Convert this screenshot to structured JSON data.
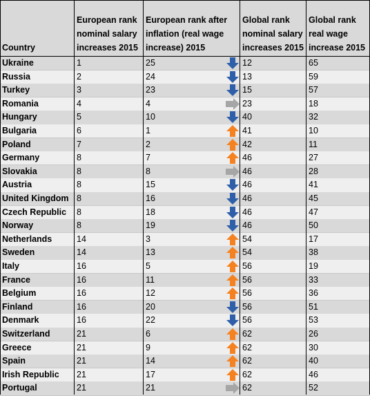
{
  "headers": [
    "Country",
    "European rank nominal salary increases 2015",
    "European rank after inflation (real wage increase) 2015",
    "Global rank nominal salary increases 2015",
    "Global rank real wage increase 2015"
  ],
  "rows": [
    {
      "country": "Ukraine",
      "eu_nominal": "1",
      "eu_real": "25",
      "trend": "down",
      "global_nominal": "12",
      "global_real": "65"
    },
    {
      "country": "Russia",
      "eu_nominal": "2",
      "eu_real": "24",
      "trend": "down",
      "global_nominal": "13",
      "global_real": "59"
    },
    {
      "country": "Turkey",
      "eu_nominal": "3",
      "eu_real": "23",
      "trend": "down",
      "global_nominal": "15",
      "global_real": "57"
    },
    {
      "country": "Romania",
      "eu_nominal": "4",
      "eu_real": "4",
      "trend": "same",
      "global_nominal": "23",
      "global_real": "18"
    },
    {
      "country": "Hungary",
      "eu_nominal": "5",
      "eu_real": "10",
      "trend": "down",
      "global_nominal": "40",
      "global_real": "32"
    },
    {
      "country": "Bulgaria",
      "eu_nominal": "6",
      "eu_real": "1",
      "trend": "up",
      "global_nominal": "41",
      "global_real": "10"
    },
    {
      "country": "Poland",
      "eu_nominal": "7",
      "eu_real": "2",
      "trend": "up",
      "global_nominal": "42",
      "global_real": "11"
    },
    {
      "country": "Germany",
      "eu_nominal": "8",
      "eu_real": "7",
      "trend": "up",
      "global_nominal": "46",
      "global_real": "27"
    },
    {
      "country": "Slovakia",
      "eu_nominal": "8",
      "eu_real": "8",
      "trend": "same",
      "global_nominal": "46",
      "global_real": "28"
    },
    {
      "country": "Austria",
      "eu_nominal": "8",
      "eu_real": "15",
      "trend": "down",
      "global_nominal": "46",
      "global_real": "41"
    },
    {
      "country": "United Kingdom",
      "eu_nominal": "8",
      "eu_real": "16",
      "trend": "down",
      "global_nominal": "46",
      "global_real": "45"
    },
    {
      "country": "Czech Republic",
      "eu_nominal": "8",
      "eu_real": "18",
      "trend": "down",
      "global_nominal": "46",
      "global_real": "47"
    },
    {
      "country": "Norway",
      "eu_nominal": "8",
      "eu_real": "19",
      "trend": "down",
      "global_nominal": "46",
      "global_real": "50"
    },
    {
      "country": "Netherlands",
      "eu_nominal": "14",
      "eu_real": "3",
      "trend": "up",
      "global_nominal": "54",
      "global_real": "17"
    },
    {
      "country": "Sweden",
      "eu_nominal": "14",
      "eu_real": "13",
      "trend": "up",
      "global_nominal": "54",
      "global_real": "38"
    },
    {
      "country": "Italy",
      "eu_nominal": "16",
      "eu_real": "5",
      "trend": "up",
      "global_nominal": "56",
      "global_real": "19"
    },
    {
      "country": "France",
      "eu_nominal": "16",
      "eu_real": "11",
      "trend": "up",
      "global_nominal": "56",
      "global_real": "33"
    },
    {
      "country": "Belgium",
      "eu_nominal": "16",
      "eu_real": "12",
      "trend": "up",
      "global_nominal": "56",
      "global_real": "36"
    },
    {
      "country": "Finland",
      "eu_nominal": "16",
      "eu_real": "20",
      "trend": "down",
      "global_nominal": "56",
      "global_real": "51"
    },
    {
      "country": "Denmark",
      "eu_nominal": "16",
      "eu_real": "22",
      "trend": "down",
      "global_nominal": "56",
      "global_real": "53"
    },
    {
      "country": "Switzerland",
      "eu_nominal": "21",
      "eu_real": "6",
      "trend": "up",
      "global_nominal": "62",
      "global_real": "26"
    },
    {
      "country": "Greece",
      "eu_nominal": "21",
      "eu_real": "9",
      "trend": "up",
      "global_nominal": "62",
      "global_real": "30"
    },
    {
      "country": "Spain",
      "eu_nominal": "21",
      "eu_real": "14",
      "trend": "up",
      "global_nominal": "62",
      "global_real": "40"
    },
    {
      "country": "Irish Republic",
      "eu_nominal": "21",
      "eu_real": "17",
      "trend": "up",
      "global_nominal": "62",
      "global_real": "46"
    },
    {
      "country": "Portugal",
      "eu_nominal": "21",
      "eu_real": "21",
      "trend": "same",
      "global_nominal": "62",
      "global_real": "52"
    }
  ],
  "colors": {
    "arrow_up": "#f58220",
    "arrow_down": "#2e5fa8",
    "arrow_same": "#a6a6a6"
  },
  "icons": {
    "up": "orange-up-arrow-icon",
    "down": "blue-down-arrow-icon",
    "same": "gray-right-arrow-icon"
  }
}
